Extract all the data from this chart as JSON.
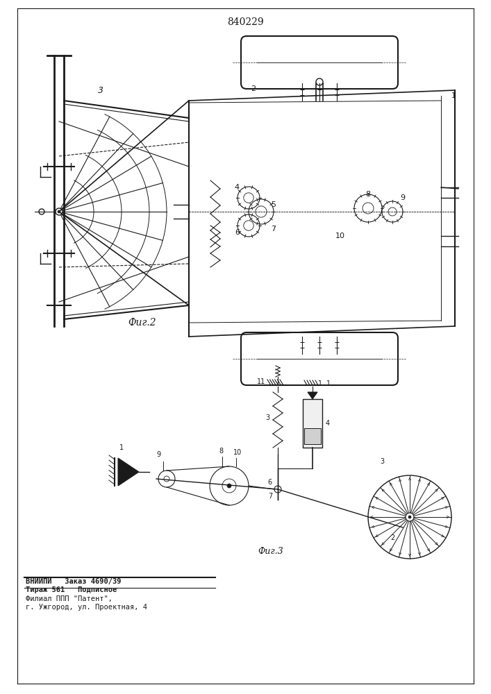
{
  "patent_number": "840229",
  "fig2_label": "Фиг.2",
  "fig3_label": "Фиг.3",
  "bottom_text_line1": "ВНИИПИ   Заказ 4690/39",
  "bottom_text_line2": "Тираж 561   Подписное",
  "bottom_text_line3": "Филиал ППП \"Патент\",",
  "bottom_text_line4": "г. Ужгород, ул. Проектная, 4",
  "bg_color": "#ffffff",
  "line_color": "#1a1a1a"
}
